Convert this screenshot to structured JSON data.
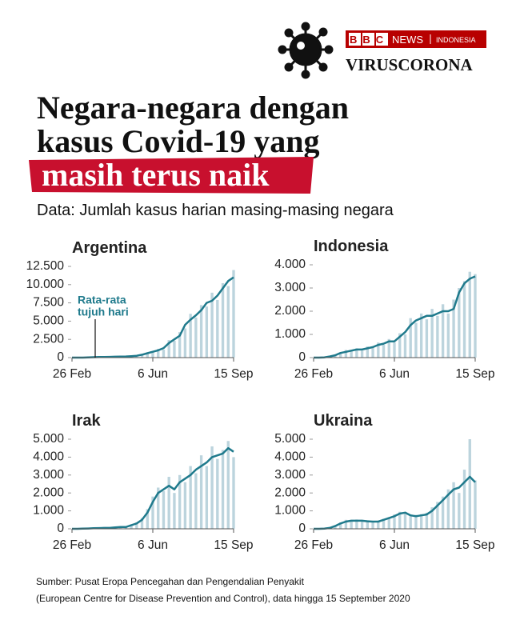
{
  "header": {
    "brand": "BBC",
    "news": "NEWS",
    "region": "INDONESIA",
    "section": "VIRUSCORONA",
    "title_lines": [
      "Negara-negara dengan",
      "kasus Covid-19 yang"
    ],
    "highlight": "masih terus naik",
    "subtitle": "Data: Jumlah kasus harian masing-masing negara"
  },
  "source": [
    "Sumber: Pusat Eropa Pencegahan dan Pengendalian Penyakit",
    "(European Centre for Disease Prevention and Control), data hingga 15 September 2020"
  ],
  "chart_data": [
    {
      "type": "combo",
      "title": "Argentina",
      "categories": [
        "26 Feb",
        null,
        null,
        null,
        null,
        null,
        null,
        null,
        null,
        null,
        null,
        null,
        null,
        null,
        null,
        "6 Jun",
        null,
        null,
        null,
        null,
        null,
        null,
        null,
        null,
        null,
        null,
        null,
        null,
        null,
        null,
        "15 Sep"
      ],
      "ylim": [
        0,
        12500
      ],
      "yticks": [
        0,
        {
          "value": 2500,
          "label": "2.500"
        },
        {
          "value": 5000,
          "label": "5.000"
        },
        {
          "value": 7500,
          "label": "7.500"
        },
        {
          "value": 10000,
          "label": "10.000"
        },
        {
          "value": 12500,
          "label": "12.500"
        }
      ],
      "annotation": [
        "Rata-rata",
        "tujuh hari"
      ],
      "series": [
        {
          "type": "bar",
          "color": "#bcd4dd",
          "values": [
            0,
            0,
            8,
            30,
            60,
            70,
            110,
            90,
            140,
            120,
            170,
            180,
            300,
            350,
            700,
            750,
            1200,
            1100,
            2400,
            2300,
            3500,
            4000,
            6000,
            5500,
            7200,
            7000,
            8900,
            7900,
            10200,
            9800,
            12000
          ]
        },
        {
          "type": "line",
          "color": "#1f7a8c",
          "values": [
            0,
            0,
            5,
            20,
            50,
            80,
            90,
            100,
            120,
            130,
            150,
            200,
            250,
            400,
            600,
            800,
            1000,
            1300,
            2000,
            2500,
            3000,
            4500,
            5200,
            5800,
            6500,
            7500,
            7800,
            8500,
            9500,
            10500,
            11000
          ]
        }
      ]
    },
    {
      "type": "combo",
      "title": "Indonesia",
      "categories": [
        "26 Feb",
        null,
        null,
        null,
        null,
        null,
        null,
        null,
        null,
        null,
        null,
        null,
        null,
        null,
        null,
        "6 Jun",
        null,
        null,
        null,
        null,
        null,
        null,
        null,
        null,
        null,
        null,
        null,
        null,
        null,
        null,
        "15 Sep"
      ],
      "ylim": [
        0,
        4000
      ],
      "yticks": [
        0,
        {
          "value": 1000,
          "label": "1.000"
        },
        {
          "value": 2000,
          "label": "2.000"
        },
        {
          "value": 3000,
          "label": "3.000"
        },
        {
          "value": 4000,
          "label": "4.000"
        }
      ],
      "series": [
        {
          "type": "bar",
          "color": "#bcd4dd",
          "values": [
            0,
            2,
            20,
            80,
            120,
            180,
            330,
            280,
            400,
            300,
            480,
            420,
            650,
            550,
            800,
            650,
            1050,
            1000,
            1700,
            1500,
            1900,
            1650,
            2100,
            1800,
            2300,
            1900,
            2500,
            3000,
            3300,
            3700,
            3600
          ]
        },
        {
          "type": "line",
          "color": "#1f7a8c",
          "values": [
            0,
            0,
            10,
            50,
            100,
            200,
            250,
            300,
            350,
            350,
            400,
            450,
            550,
            600,
            700,
            700,
            900,
            1100,
            1400,
            1600,
            1700,
            1800,
            1800,
            1900,
            2000,
            2000,
            2100,
            2800,
            3200,
            3400,
            3500
          ]
        }
      ]
    },
    {
      "type": "combo",
      "title": "Irak",
      "categories": [
        "26 Feb",
        null,
        null,
        null,
        null,
        null,
        null,
        null,
        null,
        null,
        null,
        null,
        null,
        null,
        null,
        "6 Jun",
        null,
        null,
        null,
        null,
        null,
        null,
        null,
        null,
        null,
        null,
        null,
        null,
        null,
        null,
        "15 Sep"
      ],
      "ylim": [
        0,
        5000
      ],
      "yticks": [
        0,
        {
          "value": 1000,
          "label": "1.000"
        },
        {
          "value": 2000,
          "label": "2.000"
        },
        {
          "value": 3000,
          "label": "3.000"
        },
        {
          "value": 4000,
          "label": "4.000"
        },
        {
          "value": 5000,
          "label": "5.000"
        }
      ],
      "series": [
        {
          "type": "bar",
          "color": "#bcd4dd",
          "values": [
            0,
            1,
            15,
            25,
            40,
            35,
            70,
            45,
            100,
            90,
            130,
            250,
            350,
            600,
            1100,
            1800,
            2300,
            2100,
            2900,
            2000,
            3000,
            2600,
            3500,
            3100,
            4100,
            3500,
            4600,
            3900,
            4400,
            4900,
            4000
          ]
        },
        {
          "type": "line",
          "color": "#1f7a8c",
          "values": [
            0,
            0,
            10,
            20,
            30,
            40,
            50,
            50,
            80,
            100,
            100,
            200,
            300,
            500,
            900,
            1500,
            2000,
            2200,
            2400,
            2200,
            2600,
            2800,
            3000,
            3300,
            3500,
            3700,
            4000,
            4100,
            4200,
            4500,
            4300
          ]
        }
      ]
    },
    {
      "type": "combo",
      "title": "Ukraina",
      "categories": [
        "26 Feb",
        null,
        null,
        null,
        null,
        null,
        null,
        null,
        null,
        null,
        null,
        null,
        null,
        null,
        null,
        "6 Jun",
        null,
        null,
        null,
        null,
        null,
        null,
        null,
        null,
        null,
        null,
        null,
        null,
        null,
        null,
        "15 Sep"
      ],
      "ylim": [
        0,
        5000
      ],
      "yticks": [
        0,
        {
          "value": 1000,
          "label": "1.000"
        },
        {
          "value": 2000,
          "label": "2.000"
        },
        {
          "value": 3000,
          "label": "3.000"
        },
        {
          "value": 4000,
          "label": "4.000"
        },
        {
          "value": 5000,
          "label": "5.000"
        }
      ],
      "series": [
        {
          "type": "bar",
          "color": "#bcd4dd",
          "values": [
            0,
            2,
            20,
            80,
            200,
            350,
            500,
            420,
            520,
            400,
            480,
            380,
            450,
            560,
            650,
            800,
            950,
            850,
            700,
            780,
            820,
            900,
            1200,
            1500,
            1800,
            2200,
            2600,
            2000,
            3300,
            5000,
            2700
          ]
        },
        {
          "type": "line",
          "color": "#1f7a8c",
          "values": [
            0,
            0,
            10,
            50,
            150,
            300,
            400,
            450,
            450,
            450,
            420,
            400,
            400,
            500,
            600,
            700,
            850,
            900,
            750,
            700,
            750,
            800,
            1000,
            1300,
            1600,
            1900,
            2200,
            2300,
            2600,
            2900,
            2600
          ]
        }
      ]
    }
  ]
}
